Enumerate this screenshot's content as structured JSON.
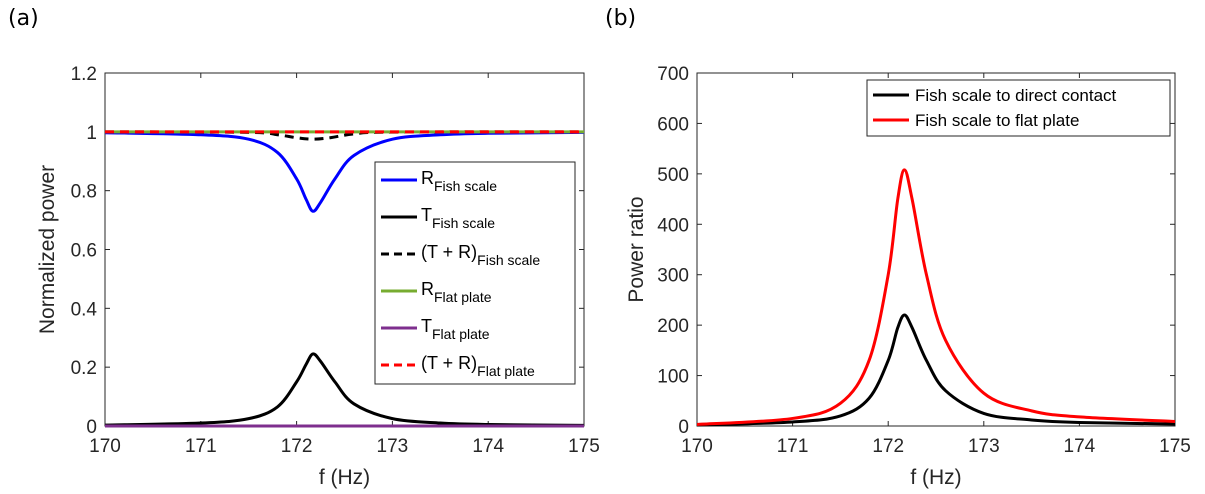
{
  "panel_labels": [
    "(a)",
    "(b)"
  ],
  "chart_data": [
    {
      "type": "line",
      "panel": "(a)",
      "xlabel": "f (Hz)",
      "ylabel": "Normalized power",
      "xlim": [
        170,
        175
      ],
      "ylim": [
        0,
        1.2
      ],
      "xticks": [
        "170",
        "171",
        "172",
        "173",
        "174",
        "175"
      ],
      "yticks": [
        "0",
        "0.2",
        "0.4",
        "0.6",
        "0.8",
        "1",
        "1.2"
      ],
      "grid": false,
      "legend_position": "right",
      "series": [
        {
          "name": "R",
          "sub": "Fish scale",
          "color": "#0000ff",
          "dash": "solid",
          "x": [
            170,
            171,
            171.5,
            171.8,
            172.0,
            172.1,
            172.17,
            172.25,
            172.4,
            172.6,
            173,
            173.5,
            174,
            175
          ],
          "y": [
            0.997,
            0.99,
            0.975,
            0.93,
            0.84,
            0.77,
            0.73,
            0.76,
            0.84,
            0.92,
            0.975,
            0.99,
            0.995,
            0.998
          ]
        },
        {
          "name": "T",
          "sub": "Fish scale",
          "color": "#000000",
          "dash": "solid",
          "x": [
            170,
            171,
            171.5,
            171.8,
            172.0,
            172.1,
            172.17,
            172.25,
            172.4,
            172.6,
            173,
            173.5,
            174,
            175
          ],
          "y": [
            0.003,
            0.01,
            0.025,
            0.065,
            0.15,
            0.21,
            0.245,
            0.22,
            0.15,
            0.075,
            0.025,
            0.01,
            0.005,
            0.002
          ]
        },
        {
          "name": "(T + R)",
          "sub": "Fish scale",
          "color": "#000000",
          "dash": "dashed",
          "x": [
            170,
            171.5,
            171.8,
            172.0,
            172.17,
            172.35,
            172.6,
            173,
            175
          ],
          "y": [
            1.0,
            0.998,
            0.99,
            0.98,
            0.975,
            0.98,
            0.993,
            0.999,
            1.0
          ]
        },
        {
          "name": "R",
          "sub": "Flat plate",
          "color": "#77ac30",
          "dash": "solid",
          "x": [
            170,
            175
          ],
          "y": [
            1.0,
            1.0
          ]
        },
        {
          "name": "T",
          "sub": "Flat plate",
          "color": "#7e2f8e",
          "dash": "solid",
          "x": [
            170,
            175
          ],
          "y": [
            0.0,
            0.0
          ]
        },
        {
          "name": "(T + R)",
          "sub": "Flat plate",
          "color": "#ff0000",
          "dash": "dashed",
          "x": [
            170,
            175
          ],
          "y": [
            1.0,
            1.0
          ]
        }
      ]
    },
    {
      "type": "line",
      "panel": "(b)",
      "xlabel": "f (Hz)",
      "ylabel": "Power ratio",
      "xlim": [
        170,
        175
      ],
      "ylim": [
        0,
        700
      ],
      "xticks": [
        "170",
        "171",
        "172",
        "173",
        "174",
        "175"
      ],
      "yticks": [
        "0",
        "100",
        "200",
        "300",
        "400",
        "500",
        "600",
        "700"
      ],
      "grid": false,
      "legend_position": "top-right",
      "series": [
        {
          "name": "Fish scale to direct contact",
          "color": "#000000",
          "dash": "solid",
          "x": [
            170,
            171,
            171.5,
            171.8,
            172.0,
            172.1,
            172.17,
            172.25,
            172.4,
            172.6,
            173,
            173.5,
            174,
            175
          ],
          "y": [
            2,
            8,
            20,
            55,
            130,
            195,
            220,
            195,
            130,
            70,
            25,
            12,
            7,
            4
          ]
        },
        {
          "name": "Fish scale to flat plate",
          "color": "#ff0000",
          "dash": "solid",
          "x": [
            170,
            171,
            171.5,
            171.8,
            172.0,
            172.1,
            172.17,
            172.25,
            172.4,
            172.6,
            173,
            173.5,
            174,
            175
          ],
          "y": [
            3,
            15,
            45,
            130,
            300,
            450,
            508,
            450,
            300,
            170,
            65,
            30,
            18,
            9
          ]
        }
      ]
    }
  ]
}
